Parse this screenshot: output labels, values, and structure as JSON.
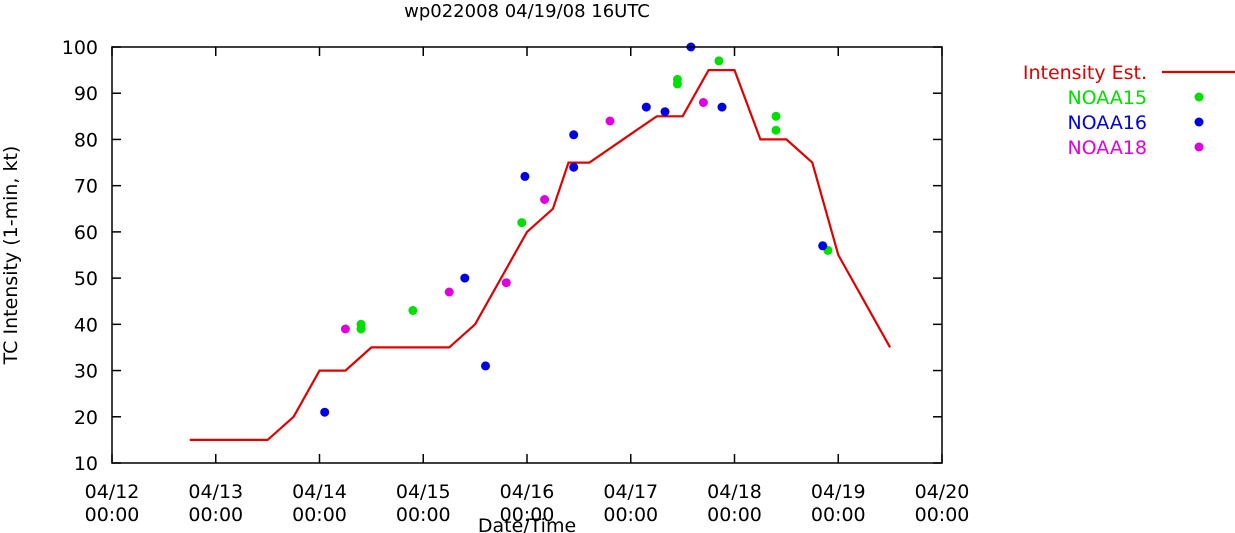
{
  "chart_data": {
    "type": "line+scatter",
    "title": "wp022008 04/19/08 16UTC",
    "xlabel": "Date/Time",
    "ylabel": "TC Intensity (1-min, kt)",
    "ylim": [
      10,
      100
    ],
    "yticks": [
      10,
      20,
      30,
      40,
      50,
      60,
      70,
      80,
      90,
      100
    ],
    "xlim_days": [
      0,
      8
    ],
    "xticks": [
      {
        "day": 0,
        "date": "04/12",
        "time": "00:00"
      },
      {
        "day": 1,
        "date": "04/13",
        "time": "00:00"
      },
      {
        "day": 2,
        "date": "04/14",
        "time": "00:00"
      },
      {
        "day": 3,
        "date": "04/15",
        "time": "00:00"
      },
      {
        "day": 4,
        "date": "04/16",
        "time": "00:00"
      },
      {
        "day": 5,
        "date": "04/17",
        "time": "00:00"
      },
      {
        "day": 6,
        "date": "04/18",
        "time": "00:00"
      },
      {
        "day": 7,
        "date": "04/19",
        "time": "00:00"
      },
      {
        "day": 8,
        "date": "04/20",
        "time": "00:00"
      }
    ],
    "legend_position": "outside-right",
    "series": [
      {
        "name": "Intensity Est.",
        "kind": "line",
        "color": "#e00000",
        "x": [
          0.75,
          1.5,
          1.75,
          2.0,
          2.25,
          2.5,
          3.0,
          3.25,
          3.5,
          4.0,
          4.25,
          4.4,
          4.6,
          5.25,
          5.5,
          5.75,
          6.0,
          6.25,
          6.5,
          6.75,
          7.0,
          7.5
        ],
        "y": [
          15,
          15,
          20,
          30,
          30,
          35,
          35,
          35,
          40,
          60,
          65,
          75,
          75,
          85,
          85,
          95,
          95,
          80,
          80,
          75,
          55,
          35
        ]
      },
      {
        "name": "NOAA15",
        "kind": "scatter",
        "color": "#00e000",
        "x": [
          2.4,
          2.4,
          2.9,
          3.95,
          5.45,
          5.45,
          5.85,
          6.4,
          6.4,
          6.9
        ],
        "y": [
          40,
          39,
          43,
          62,
          93,
          92,
          97,
          85,
          82,
          56
        ]
      },
      {
        "name": "NOAA16",
        "kind": "scatter",
        "color": "#0000e0",
        "x": [
          2.05,
          3.4,
          3.6,
          3.98,
          4.45,
          4.45,
          5.15,
          5.33,
          5.88,
          5.58,
          6.85
        ],
        "y": [
          21,
          50,
          31,
          72,
          81,
          74,
          87,
          86,
          87,
          100,
          57
        ]
      },
      {
        "name": "NOAA18",
        "kind": "scatter",
        "color": "#e000e0",
        "x": [
          2.25,
          3.25,
          3.8,
          4.17,
          4.8,
          5.7
        ],
        "y": [
          39,
          47,
          49,
          67,
          84,
          88
        ]
      }
    ]
  }
}
